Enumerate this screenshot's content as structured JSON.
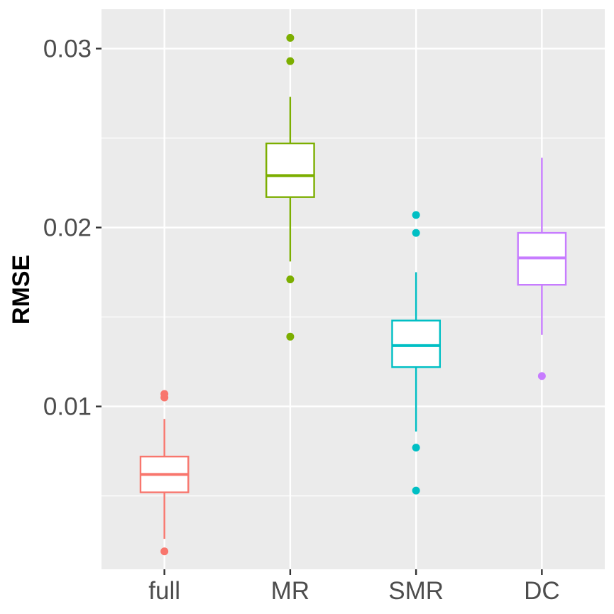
{
  "chart_data": {
    "type": "boxplot",
    "title": "",
    "xlabel": "",
    "ylabel": "RMSE",
    "ylim": [
      0.0009,
      0.0322
    ],
    "grid": true,
    "legend": "none",
    "y_major_ticks": [
      0.01,
      0.02,
      0.03
    ],
    "y_major_tick_labels": [
      "0.01",
      "0.02",
      "0.03"
    ],
    "y_minor_ticks": [
      0.005,
      0.015,
      0.025
    ],
    "categories": [
      "full",
      "MR",
      "SMR",
      "DC"
    ],
    "series": [
      {
        "name": "full",
        "color": "#F8766D",
        "whisker_low": 0.0026,
        "q1": 0.0052,
        "median": 0.0062,
        "q3": 0.0072,
        "whisker_high": 0.0093,
        "outliers": [
          0.0019,
          0.0105,
          0.0107
        ]
      },
      {
        "name": "MR",
        "color": "#7CAE00",
        "whisker_low": 0.0181,
        "q1": 0.0217,
        "median": 0.0229,
        "q3": 0.0247,
        "whisker_high": 0.0273,
        "outliers": [
          0.0139,
          0.0171,
          0.0293,
          0.0306
        ]
      },
      {
        "name": "SMR",
        "color": "#00BFC4",
        "whisker_low": 0.0086,
        "q1": 0.0122,
        "median": 0.0134,
        "q3": 0.0148,
        "whisker_high": 0.0175,
        "outliers": [
          0.0053,
          0.0077,
          0.0197,
          0.0207
        ]
      },
      {
        "name": "DC",
        "color": "#C77CFF",
        "whisker_low": 0.014,
        "q1": 0.0168,
        "median": 0.0183,
        "q3": 0.0197,
        "whisker_high": 0.0239,
        "outliers": [
          0.0117
        ]
      }
    ]
  }
}
